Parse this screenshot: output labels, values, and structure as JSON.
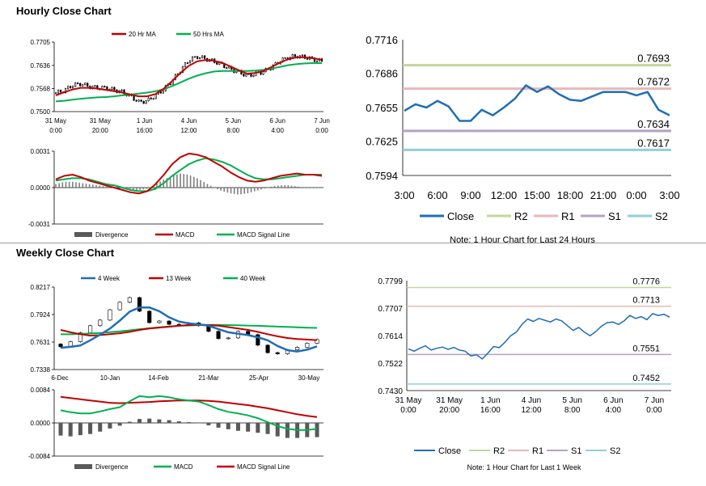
{
  "section_titles": {
    "hourly": "Hourly Close Chart",
    "weekly": "Weekly Close Chart"
  },
  "colors": {
    "red": "#c00000",
    "green": "#00b050",
    "blue": "#1f6eb5",
    "gray": "#7f7f7f",
    "r2": "#c3d69b",
    "r1": "#e6b9b8",
    "s1": "#b3a2c7",
    "s2": "#93cddd"
  },
  "chart_data": [
    {
      "id": "hourly-price",
      "type": "candlestick",
      "legend": [
        "20 Hr MA",
        "50 Hrs MA"
      ],
      "ylim": [
        0.75,
        0.7705
      ],
      "yticks": [
        "0.7705",
        "0.7636",
        "0.7568",
        "0.7500"
      ],
      "xticks": [
        [
          "31 May",
          "0:00"
        ],
        [
          "31 May",
          "20:00"
        ],
        [
          "1 Jun",
          "16:00"
        ],
        [
          "4 Jun",
          "12:00"
        ],
        [
          "5 Jun",
          "8:00"
        ],
        [
          "6 Jun",
          "4:00"
        ],
        [
          "7 Jun",
          "0:00"
        ]
      ],
      "close_path": [
        0.7555,
        0.7562,
        0.7578,
        0.7582,
        0.7574,
        0.757,
        0.757,
        0.7564,
        0.7558,
        0.7545,
        0.7528,
        0.7532,
        0.7548,
        0.7566,
        0.7592,
        0.7622,
        0.7652,
        0.7662,
        0.7656,
        0.7648,
        0.7638,
        0.7625,
        0.7616,
        0.7606,
        0.7611,
        0.7618,
        0.7632,
        0.765,
        0.766,
        0.7664,
        0.766,
        0.7654,
        0.7648
      ],
      "ma20": [
        0.7548,
        0.7557,
        0.7565,
        0.757,
        0.757,
        0.7568,
        0.7564,
        0.756,
        0.7556,
        0.755,
        0.7545,
        0.7545,
        0.7552,
        0.7568,
        0.759,
        0.7614,
        0.7635,
        0.7648,
        0.7652,
        0.765,
        0.7644,
        0.7633,
        0.7622,
        0.7612,
        0.7614,
        0.762,
        0.7632,
        0.7645,
        0.7655,
        0.766,
        0.766,
        0.7657,
        0.7653
      ],
      "ma50": [
        0.753,
        0.7532,
        0.7535,
        0.7538,
        0.754,
        0.7542,
        0.7543,
        0.7545,
        0.7548,
        0.755,
        0.7553,
        0.7556,
        0.756,
        0.7566,
        0.7575,
        0.7586,
        0.7597,
        0.7606,
        0.7613,
        0.7618,
        0.762,
        0.762,
        0.762,
        0.762,
        0.7621,
        0.7623,
        0.7627,
        0.7632,
        0.7637,
        0.764,
        0.7642,
        0.7643,
        0.7643
      ]
    },
    {
      "id": "hourly-macd",
      "type": "bar+line",
      "legend": [
        "Divergence",
        "MACD",
        "MACD Signal Line"
      ],
      "ylim": [
        -0.0031,
        0.0031
      ],
      "yticks": [
        "0.0031",
        "0.0000",
        "-0.0031"
      ],
      "divergence": [
        0.0003,
        0.0005,
        0.0005,
        0.0004,
        0.0003,
        0.0002,
        0.0001,
        0.0,
        -0.0001,
        -0.0002,
        -0.0002,
        -0.0001,
        0.0003,
        0.0007,
        0.001,
        0.0012,
        0.0011,
        0.0008,
        0.0004,
        0.0,
        -0.0003,
        -0.0005,
        -0.0006,
        -0.0005,
        -0.0003,
        -0.0001,
        0.0001,
        0.0002,
        0.0002,
        0.0001,
        0.0,
        0.0,
        0.0
      ],
      "macd": [
        0.0007,
        0.001,
        0.0011,
        0.0009,
        0.0006,
        0.0004,
        0.0002,
        0.0,
        -0.0002,
        -0.0004,
        -0.0005,
        -0.0003,
        0.0003,
        0.0011,
        0.002,
        0.0026,
        0.0029,
        0.0028,
        0.0026,
        0.0022,
        0.0018,
        0.0013,
        0.0009,
        0.0006,
        0.0005,
        0.0006,
        0.0008,
        0.001,
        0.0011,
        0.0012,
        0.0011,
        0.0011,
        0.001
      ],
      "signal": [
        0.0006,
        0.0007,
        0.0008,
        0.0008,
        0.0007,
        0.0005,
        0.0003,
        0.0002,
        0.0,
        -0.0002,
        -0.0003,
        -0.0003,
        -0.0001,
        0.0004,
        0.001,
        0.0015,
        0.002,
        0.0023,
        0.0025,
        0.0024,
        0.0022,
        0.0019,
        0.0015,
        0.0011,
        0.0008,
        0.0007,
        0.0007,
        0.0008,
        0.0009,
        0.001,
        0.0011,
        0.0011,
        0.0011
      ]
    },
    {
      "id": "hourly-24h",
      "type": "line",
      "ylim": [
        0.7594,
        0.7716
      ],
      "yticks": [
        "0.7716",
        "0.7686",
        "0.7655",
        "0.7625",
        "0.7594"
      ],
      "xticks": [
        "3:00",
        "6:00",
        "9:00",
        "12:00",
        "15:00",
        "18:00",
        "21:00",
        "0:00",
        "3:00"
      ],
      "close": [
        0.7652,
        0.7658,
        0.7655,
        0.7661,
        0.7656,
        0.7643,
        0.7643,
        0.7653,
        0.7648,
        0.7655,
        0.7663,
        0.7675,
        0.7669,
        0.7674,
        0.7667,
        0.7662,
        0.7661,
        0.7665,
        0.7669,
        0.7669,
        0.7669,
        0.7666,
        0.7669,
        0.7653,
        0.7648
      ],
      "levels": [
        {
          "name": "R2",
          "value": 0.7693,
          "label": "0.7693"
        },
        {
          "name": "R1",
          "value": 0.7672,
          "label": "0.7672"
        },
        {
          "name": "S1",
          "value": 0.7634,
          "label": "0.7634"
        },
        {
          "name": "S2",
          "value": 0.7617,
          "label": "0.7617"
        }
      ],
      "legend": [
        "Close",
        "R2",
        "R1",
        "S1",
        "S2"
      ],
      "note": "Note: 1 Hour Chart for Last 24 Hours"
    },
    {
      "id": "weekly-price",
      "type": "candlestick",
      "legend": [
        "4 Week",
        "13 Week",
        "40 Week"
      ],
      "ylim": [
        0.7338,
        0.8217
      ],
      "yticks": [
        "0.8217",
        "0.7924",
        "0.7631",
        "0.7338"
      ],
      "xticks": [
        "6-Dec",
        "10-Jan",
        "14-Feb",
        "21-Mar",
        "25-Apr",
        "30-May"
      ],
      "open": [
        0.761,
        0.7581,
        0.7635,
        0.773,
        0.7805,
        0.7865,
        0.7975,
        0.8055,
        0.8105,
        0.796,
        0.7838,
        0.7855,
        0.782,
        0.7815,
        0.7835,
        0.7805,
        0.7745,
        0.7668,
        0.7675,
        0.7745,
        0.771,
        0.7598,
        0.7518,
        0.7506,
        0.7548,
        0.7575,
        0.7618
      ],
      "close": [
        0.7581,
        0.7635,
        0.773,
        0.7805,
        0.7865,
        0.7975,
        0.8055,
        0.8105,
        0.796,
        0.7838,
        0.7855,
        0.782,
        0.7815,
        0.7835,
        0.7805,
        0.7745,
        0.7668,
        0.7675,
        0.7745,
        0.771,
        0.7598,
        0.7518,
        0.7506,
        0.7548,
        0.7575,
        0.7618,
        0.7658
      ],
      "ma4": [
        0.757,
        0.758,
        0.7595,
        0.765,
        0.771,
        0.7775,
        0.786,
        0.7955,
        0.8,
        0.8,
        0.796,
        0.7895,
        0.785,
        0.783,
        0.782,
        0.7805,
        0.777,
        0.7735,
        0.772,
        0.7705,
        0.7682,
        0.765,
        0.759,
        0.7545,
        0.753,
        0.755,
        0.7585
      ],
      "ma13": [
        0.776,
        0.7735,
        0.7715,
        0.77,
        0.7705,
        0.7715,
        0.7725,
        0.774,
        0.776,
        0.7775,
        0.7785,
        0.7795,
        0.7805,
        0.7812,
        0.7815,
        0.7812,
        0.7805,
        0.779,
        0.7775,
        0.776,
        0.774,
        0.7715,
        0.7692,
        0.7674,
        0.7664,
        0.7658,
        0.7652
      ],
      "ma40": [
        0.7714,
        0.7714,
        0.7718,
        0.7722,
        0.7728,
        0.7736,
        0.7746,
        0.7756,
        0.7768,
        0.7778,
        0.7788,
        0.7796,
        0.7804,
        0.7808,
        0.7812,
        0.7814,
        0.7814,
        0.7812,
        0.781,
        0.7807,
        0.7804,
        0.78,
        0.7796,
        0.7792,
        0.7788,
        0.7784,
        0.7782
      ]
    },
    {
      "id": "weekly-macd",
      "type": "bar+line",
      "legend": [
        "Divergence",
        "MACD",
        "MACD Signal Line"
      ],
      "ylim": [
        -0.0084,
        0.0084
      ],
      "yticks": [
        "0.0084",
        "0.0000",
        "-0.0084"
      ],
      "divergence": [
        -0.0032,
        -0.0034,
        -0.0031,
        -0.0028,
        -0.0022,
        -0.0014,
        -0.0007,
        0.0003,
        0.001,
        0.0011,
        0.0009,
        0.0007,
        0.0004,
        0.0002,
        0.0,
        -0.0006,
        -0.0012,
        -0.0016,
        -0.002,
        -0.0022,
        -0.0025,
        -0.0028,
        -0.0034,
        -0.0038,
        -0.0038,
        -0.0036,
        -0.0036
      ],
      "macd": [
        0.0032,
        0.0027,
        0.0024,
        0.0024,
        0.0029,
        0.0035,
        0.004,
        0.0055,
        0.0068,
        0.0065,
        0.0068,
        0.0065,
        0.006,
        0.0057,
        0.0054,
        0.0045,
        0.0035,
        0.0028,
        0.0024,
        0.0019,
        0.0012,
        0.0002,
        -0.0008,
        -0.0015,
        -0.0018,
        -0.0018,
        -0.0015
      ],
      "signal": [
        0.0066,
        0.0063,
        0.006,
        0.0057,
        0.0054,
        0.0051,
        0.005,
        0.0051,
        0.0052,
        0.0053,
        0.0055,
        0.0056,
        0.0057,
        0.0057,
        0.0057,
        0.0056,
        0.0054,
        0.0051,
        0.0048,
        0.0045,
        0.0041,
        0.0037,
        0.0032,
        0.0027,
        0.0022,
        0.0018,
        0.0015
      ]
    },
    {
      "id": "weekly-1w",
      "type": "line",
      "ylim": [
        0.743,
        0.7799
      ],
      "yticks": [
        "0.7799",
        "0.7707",
        "0.7614",
        "0.7522",
        "0.7430"
      ],
      "xticks": [
        [
          "31 May",
          "0:00"
        ],
        [
          "31 May",
          "20:00"
        ],
        [
          "1 Jun",
          "16:00"
        ],
        [
          "4 Jun",
          "12:00"
        ],
        [
          "5 Jun",
          "8:00"
        ],
        [
          "6 Jun",
          "4:00"
        ],
        [
          "7 Jun",
          "0:00"
        ]
      ],
      "close": [
        0.757,
        0.7562,
        0.7572,
        0.758,
        0.7566,
        0.7572,
        0.7576,
        0.7568,
        0.7575,
        0.7566,
        0.7562,
        0.7546,
        0.755,
        0.7536,
        0.7556,
        0.7578,
        0.7574,
        0.7592,
        0.7614,
        0.7626,
        0.7652,
        0.767,
        0.7662,
        0.7672,
        0.7666,
        0.766,
        0.767,
        0.7664,
        0.7648,
        0.7632,
        0.7642,
        0.7626,
        0.7614,
        0.7628,
        0.7646,
        0.7658,
        0.766,
        0.7652,
        0.7664,
        0.7682,
        0.7672,
        0.7678,
        0.7668,
        0.7688,
        0.7682,
        0.7686,
        0.7676
      ],
      "levels": [
        {
          "name": "R2",
          "value": 0.7776,
          "label": "0.7776"
        },
        {
          "name": "R1",
          "value": 0.7713,
          "label": "0.7713"
        },
        {
          "name": "S1",
          "value": 0.7551,
          "label": "0.7551"
        },
        {
          "name": "S2",
          "value": 0.7452,
          "label": "0.7452"
        }
      ],
      "legend": [
        "Close",
        "R2",
        "R1",
        "S1",
        "S2"
      ],
      "note": "Note: 1 Hour Chart for Last 1 Week"
    }
  ]
}
